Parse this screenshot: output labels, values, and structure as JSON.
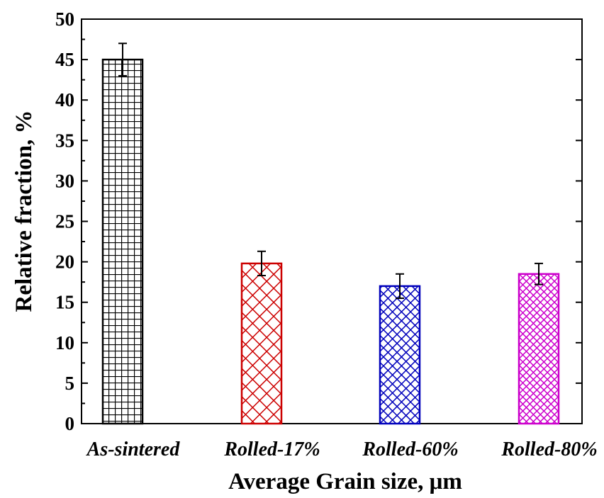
{
  "chart_data": {
    "type": "bar",
    "categories": [
      "As-sintered",
      "Rolled-17%",
      "Rolled-60%",
      "Rolled-80%"
    ],
    "values": [
      45.0,
      19.8,
      17.0,
      18.5
    ],
    "errors": [
      2.0,
      1.5,
      1.5,
      1.3
    ],
    "colors": [
      "#000000",
      "#cc0000",
      "#0000bb",
      "#cc00cc"
    ],
    "patterns": [
      "grid",
      "crosshatch",
      "crosshatch-dense",
      "crosshatch-fine"
    ],
    "title": "",
    "xlabel": "Average Grain size, μm",
    "ylabel": "Relative fraction, %",
    "ylim": [
      0,
      50
    ],
    "yticks": [
      "0",
      "5",
      "10",
      "15",
      "20",
      "25",
      "30",
      "35",
      "40",
      "45",
      "50"
    ],
    "grid": false,
    "legend": "none"
  }
}
